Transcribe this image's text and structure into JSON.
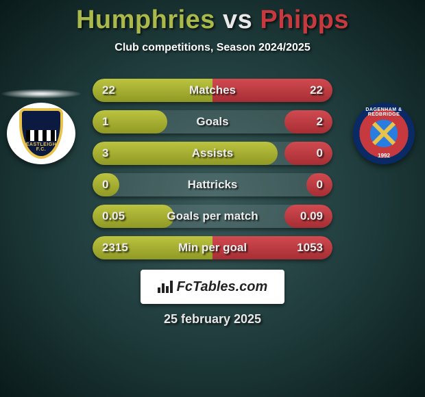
{
  "title": {
    "p1": "Humphries",
    "vs": "vs",
    "p2": "Phipps"
  },
  "subtitle": "Club competitions, Season 2024/2025",
  "colors": {
    "p1_bar": "#aab94a",
    "p2_bar": "#c63a3f",
    "track": "rgba(255,255,255,0.10)",
    "bg_outer": "#0a1a1a",
    "bg_inner": "#3a5a5a",
    "text": "#ffffff"
  },
  "branding": {
    "label": "FcTables.com"
  },
  "date": "25 february 2025",
  "badges": {
    "left": {
      "name": "eastleigh-fc-crest",
      "text": "EASTLEIGH F.C."
    },
    "right": {
      "name": "dagenham-redbridge-crest",
      "ring_text": "DAGENHAM & REDBRIDGE",
      "year": "1992"
    }
  },
  "rows": [
    {
      "label": "Matches",
      "left": "22",
      "right": "22",
      "left_pct": 50,
      "right_pct": 50
    },
    {
      "label": "Goals",
      "left": "1",
      "right": "2",
      "left_pct": 31,
      "right_pct": 20
    },
    {
      "label": "Assists",
      "left": "3",
      "right": "0",
      "left_pct": 77,
      "right_pct": 20
    },
    {
      "label": "Hattricks",
      "left": "0",
      "right": "0",
      "left_pct": 11,
      "right_pct": 11
    },
    {
      "label": "Goals per match",
      "left": "0.05",
      "right": "0.09",
      "left_pct": 34,
      "right_pct": 20
    },
    {
      "label": "Min per goal",
      "left": "2315",
      "right": "1053",
      "left_pct": 50,
      "right_pct": 50
    }
  ]
}
